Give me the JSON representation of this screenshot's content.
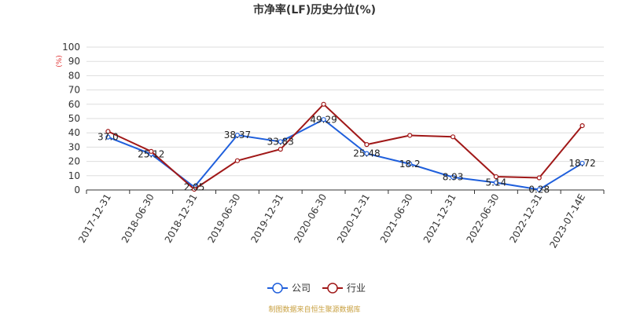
{
  "chart_data": {
    "type": "line",
    "title": "市净率(LF)历史分位(%)",
    "y_unit": "(%)",
    "categories": [
      "2017-12-31",
      "2018-06-30",
      "2018-12-31",
      "2019-06-30",
      "2019-12-31",
      "2020-06-30",
      "2020-12-31",
      "2021-06-30",
      "2021-12-31",
      "2022-06-30",
      "2022-12-31",
      "2023-07-14E"
    ],
    "ylim": [
      0,
      100
    ],
    "yticks": [
      0,
      10,
      20,
      30,
      40,
      50,
      60,
      70,
      80,
      90,
      100
    ],
    "grid": true,
    "legend_position": "bottom",
    "series": [
      {
        "name": "公司",
        "color": "#1f5fdc",
        "values": [
          37.0,
          25.12,
          2.05,
          38.37,
          33.83,
          49.29,
          25.48,
          18.2,
          8.93,
          5.14,
          0.28,
          18.72
        ],
        "labels": [
          "37.0",
          "25.12",
          "2.05",
          "38.37",
          "33.83",
          "49.29",
          "25.48",
          "18.2",
          "8.93",
          "5.14",
          "0.28",
          "18.72"
        ]
      },
      {
        "name": "行业",
        "color": "#a01818",
        "values": [
          41.0,
          27.0,
          0.5,
          20.5,
          28.5,
          60.0,
          31.8,
          38.2,
          37.2,
          9.3,
          8.5,
          45.0
        ]
      }
    ],
    "source": "制图数据来自恒生聚源数据库"
  }
}
